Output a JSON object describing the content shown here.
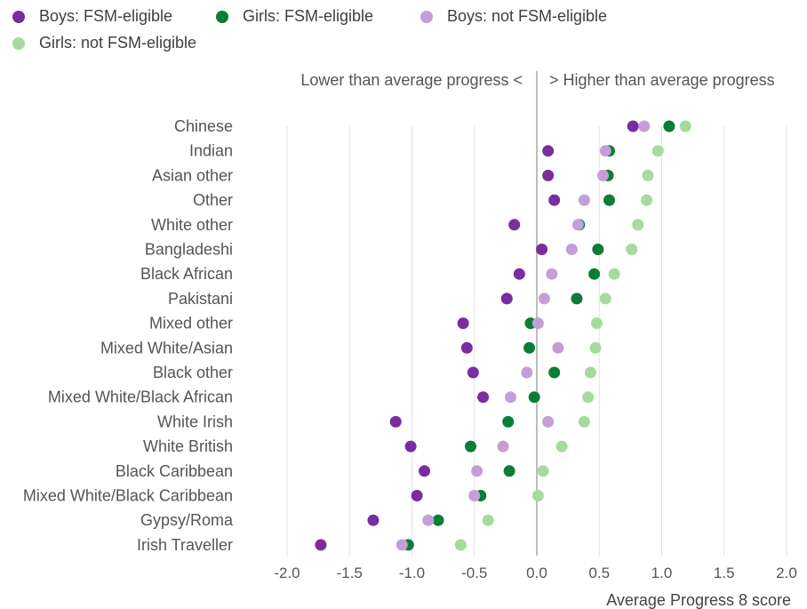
{
  "chart_data": {
    "type": "scatter",
    "title": "",
    "xlabel": "Average Progress 8 score",
    "ylabel": "",
    "xlim": [
      -2.0,
      2.0
    ],
    "x_ticks": [
      "-2.0",
      "-1.5",
      "-1.0",
      "-0.5",
      "0.0",
      "0.5",
      "1.0",
      "1.5",
      "2.0"
    ],
    "grid": "vertical",
    "legend_position": "top-left",
    "annotations": {
      "left": "Lower than average progress <",
      "right": "> Higher than average progress"
    },
    "categories": [
      "Chinese",
      "Indian",
      "Asian other",
      "Other",
      "White other",
      "Bangladeshi",
      "Black African",
      "Pakistani",
      "Mixed other",
      "Mixed White/Asian",
      "Black other",
      "Mixed White/Black African",
      "White Irish",
      "White British",
      "Black Caribbean",
      "Mixed White/Black Caribbean",
      "Gypsy/Roma",
      "Irish Traveller"
    ],
    "series": [
      {
        "name": "Boys: FSM-eligible",
        "color": "#7b2c9e",
        "values": [
          0.77,
          0.09,
          0.09,
          0.14,
          -0.18,
          0.04,
          -0.14,
          -0.24,
          -0.59,
          -0.56,
          -0.51,
          -0.43,
          -1.13,
          -1.01,
          -0.9,
          -0.96,
          -1.31,
          -1.73
        ]
      },
      {
        "name": "Girls: FSM-eligible",
        "color": "#0a7d37",
        "values": [
          1.06,
          0.58,
          0.57,
          0.58,
          0.34,
          0.49,
          0.46,
          0.32,
          -0.05,
          -0.06,
          0.14,
          -0.02,
          -0.23,
          -0.53,
          -0.22,
          -0.45,
          -0.79,
          -1.03
        ]
      },
      {
        "name": "Boys: not FSM-eligible",
        "color": "#c49ed9",
        "values": [
          0.86,
          0.55,
          0.53,
          0.38,
          0.33,
          0.28,
          0.12,
          0.06,
          0.01,
          0.17,
          -0.08,
          -0.21,
          0.09,
          -0.27,
          -0.48,
          -0.5,
          -0.87,
          -1.08
        ]
      },
      {
        "name": "Girls: not FSM-eligible",
        "color": "#a5db9c",
        "values": [
          1.19,
          0.97,
          0.89,
          0.88,
          0.81,
          0.76,
          0.62,
          0.55,
          0.48,
          0.47,
          0.43,
          0.41,
          0.38,
          0.2,
          0.05,
          0.01,
          -0.39,
          -0.61
        ]
      }
    ]
  }
}
